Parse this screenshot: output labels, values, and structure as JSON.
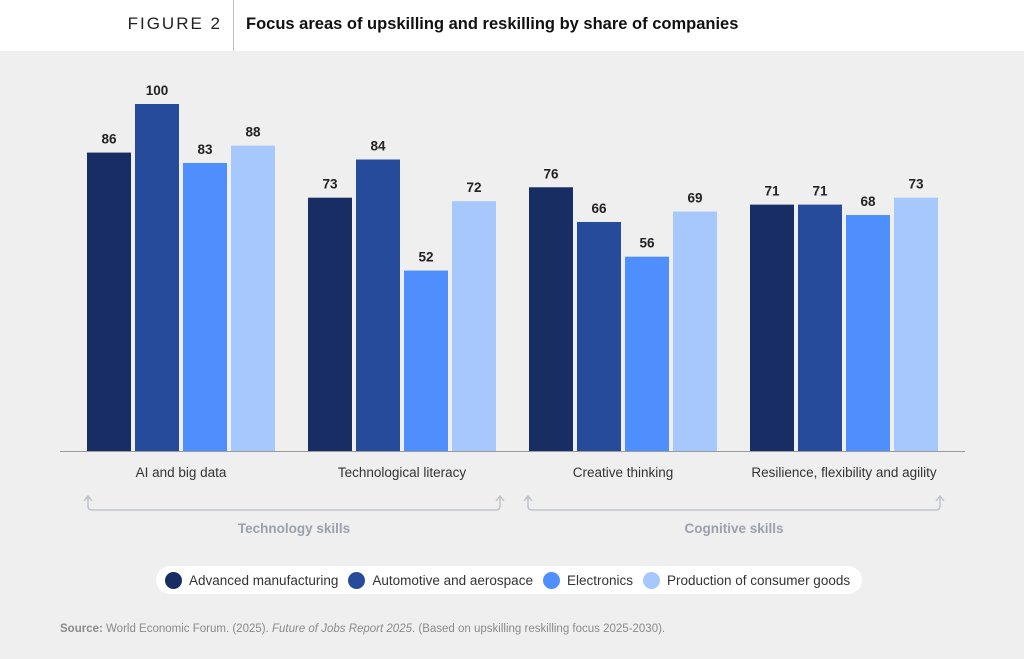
{
  "header": {
    "figure_label": "FIGURE 2",
    "title": "Focus areas of upskilling and reskilling by share of companies"
  },
  "chart_data": {
    "type": "bar",
    "title": "Focus areas of upskilling and reskilling by share of companies",
    "xlabel": "",
    "ylabel": "",
    "ylim": [
      0,
      100
    ],
    "grid": false,
    "legend_position": "bottom-center",
    "categories": [
      "AI and big data",
      "Technological literacy",
      "Creative thinking",
      "Resilience, flexibility and agility"
    ],
    "category_groups": [
      {
        "label": "Technology skills",
        "categories": [
          "AI and big data",
          "Technological literacy"
        ]
      },
      {
        "label": "Cognitive skills",
        "categories": [
          "Creative thinking",
          "Resilience, flexibility and agility"
        ]
      }
    ],
    "series": [
      {
        "name": "Advanced manufacturing",
        "color": "#172d63",
        "values": [
          86,
          73,
          76,
          71
        ]
      },
      {
        "name": "Automotive and aerospace",
        "color": "#264b9b",
        "values": [
          100,
          84,
          66,
          71
        ]
      },
      {
        "name": "Electronics",
        "color": "#4f8ffd",
        "values": [
          83,
          52,
          56,
          68
        ]
      },
      {
        "name": "Production of consumer goods",
        "color": "#a7c8fd",
        "values": [
          88,
          72,
          69,
          73
        ]
      }
    ]
  },
  "source": {
    "label": "Source:",
    "text_before": " World Economic Forum. (2025). ",
    "italic": "Future of Jobs Report 2025",
    "text_after": ". (Based on upskilling reskilling focus 2025-2030)."
  }
}
